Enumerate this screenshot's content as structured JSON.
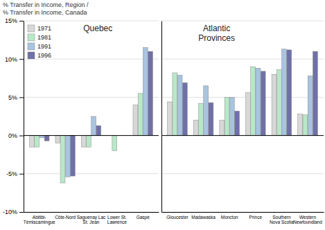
{
  "chart_data": [
    {
      "type": "bar",
      "title": "Quebec",
      "ylabel": "% Transfer in Income, Region /\n% Transfer in Income, Canada",
      "categories": [
        "Abitibi-\nTémiscamingue",
        "Côte-Nord",
        "Saguenay Lac\nSt. Jean",
        "Lower St.\nLawrence",
        "Gaspé"
      ],
      "series": [
        {
          "name": "1971",
          "color": "#d8d8d8",
          "values": [
            -1.5,
            -1.0,
            -1.5,
            0.0,
            4.0
          ]
        },
        {
          "name": "1981",
          "color": "#b8e8c8",
          "values": [
            -1.5,
            -6.2,
            -1.5,
            -2.0,
            5.5
          ]
        },
        {
          "name": "1991",
          "color": "#a8c4e0",
          "values": [
            -0.3,
            -5.4,
            2.5,
            0.0,
            11.5
          ]
        },
        {
          "name": "1996",
          "color": "#7070a8",
          "values": [
            -0.7,
            -5.3,
            1.3,
            0.0,
            11.0
          ]
        }
      ],
      "ylim": [
        -10,
        15
      ],
      "yticks": [
        {
          "value": -10,
          "label": "-10%"
        },
        {
          "value": -5,
          "label": "-5%"
        },
        {
          "value": 0,
          "label": "0%"
        },
        {
          "value": 5,
          "label": "5%"
        },
        {
          "value": 10,
          "label": "10%"
        },
        {
          "value": 15,
          "label": "15%"
        }
      ],
      "grid": true,
      "legend": "upper left"
    },
    {
      "type": "bar",
      "title": "Atlantic\nProvinces",
      "categories": [
        "Gloucester",
        "Madawaska",
        "Moncton",
        "Prince",
        "Southern\nNova Scotia",
        "Western\nNewfoundland"
      ],
      "series": [
        {
          "name": "1971",
          "color": "#d8d8d8",
          "values": [
            4.4,
            2.0,
            2.0,
            5.6,
            8.0,
            2.8
          ]
        },
        {
          "name": "1981",
          "color": "#b8e8c8",
          "values": [
            8.2,
            4.2,
            5.0,
            9.0,
            8.6,
            2.7
          ]
        },
        {
          "name": "1991",
          "color": "#a8c4e0",
          "values": [
            7.9,
            6.5,
            5.0,
            8.8,
            11.3,
            7.8
          ]
        },
        {
          "name": "1996",
          "color": "#7070a8",
          "values": [
            6.9,
            4.3,
            3.2,
            8.4,
            11.2,
            11.0
          ]
        }
      ],
      "ylim": [
        -10,
        15
      ],
      "yticks": [
        {
          "value": -10,
          "label": "-10%"
        },
        {
          "value": -5,
          "label": "-5%"
        },
        {
          "value": 0,
          "label": "0%"
        },
        {
          "value": 5,
          "label": "5%"
        },
        {
          "value": 10,
          "label": "10%"
        },
        {
          "value": 15,
          "label": "15%"
        }
      ],
      "grid": true,
      "tick_labels": "x"
    }
  ]
}
